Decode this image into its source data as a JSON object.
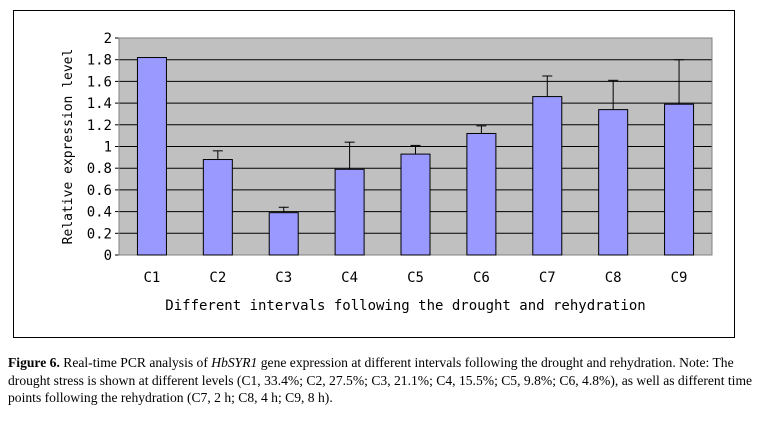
{
  "chart_data": {
    "type": "bar",
    "categories": [
      "C1",
      "C2",
      "C3",
      "C4",
      "C5",
      "C6",
      "C7",
      "C8",
      "C9"
    ],
    "values": [
      1.82,
      0.88,
      0.39,
      0.79,
      0.93,
      1.12,
      1.46,
      1.34,
      1.39
    ],
    "error_upper": [
      0,
      0.08,
      0.05,
      0.25,
      0.08,
      0.07,
      0.19,
      0.27,
      0.41
    ],
    "title": "",
    "xlabel": "Different intervals following the drought and rehydration",
    "ylabel": "Relative expression level",
    "ylim": [
      0,
      2
    ],
    "yticks": [
      "0",
      "0.2",
      "0.4",
      "0.6",
      "0.8",
      "1",
      "1.2",
      "1.4",
      "1.6",
      "1.8",
      "2"
    ],
    "grid": true,
    "legend": "none",
    "colors": {
      "bar": "#9999ff",
      "plot_bg": "#c0c0c0",
      "gridline": "#000000"
    }
  },
  "caption": {
    "figure_label": "Figure 6.",
    "text_before_gene": " Real-time PCR analysis of ",
    "gene": "HbSYR1",
    "text_after_gene": " gene expression at different intervals following the drought and rehydration. Note: The drought stress is shown at different levels (C1, 33.4%; C2, 27.5%; C3, 21.1%; C4, 15.5%; C5, 9.8%; C6, 4.8%), as well as different time points following the rehydration (C7, 2 h; C8, 4 h; C9, 8 h)."
  }
}
